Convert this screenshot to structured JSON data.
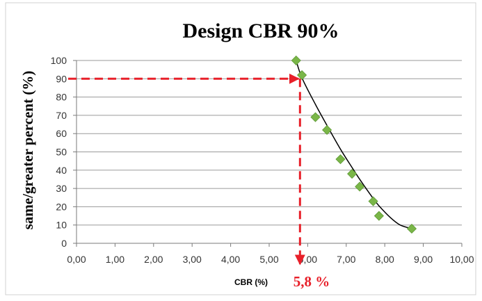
{
  "chart_data": {
    "type": "scatter",
    "title": "Design CBR 90%",
    "xlabel": "CBR (%)",
    "ylabel": "same/greater percent (%)",
    "xlim": [
      0,
      10
    ],
    "ylim": [
      0,
      100
    ],
    "x_ticks": [
      "0,00",
      "1,00",
      "2,00",
      "3,00",
      "4,00",
      "5,00",
      "6,00",
      "7,00",
      "8,00",
      "9,00",
      "10,00"
    ],
    "y_ticks": [
      "0",
      "10",
      "20",
      "30",
      "40",
      "50",
      "60",
      "70",
      "80",
      "90",
      "100"
    ],
    "grid": "horizontal",
    "series": [
      {
        "values": [
          {
            "x": 5.7,
            "y": 100
          },
          {
            "x": 5.85,
            "y": 92
          },
          {
            "x": 6.2,
            "y": 69
          },
          {
            "x": 6.5,
            "y": 62
          },
          {
            "x": 6.85,
            "y": 46
          },
          {
            "x": 7.15,
            "y": 38
          },
          {
            "x": 7.35,
            "y": 31
          },
          {
            "x": 7.7,
            "y": 23
          },
          {
            "x": 7.85,
            "y": 15
          },
          {
            "x": 8.7,
            "y": 8
          }
        ],
        "color": "#7ab648"
      }
    ],
    "trendline": {
      "x": [
        5.7,
        5.85,
        6.2,
        6.5,
        6.85,
        7.15,
        7.35,
        7.7,
        7.85,
        8.15,
        8.4,
        8.7
      ],
      "y": [
        100,
        90.5,
        76,
        64.5,
        51.5,
        41.5,
        35,
        24.5,
        20.5,
        14,
        10,
        8
      ],
      "color": "#000000"
    },
    "annotation": {
      "label": "5,8 %",
      "x": 5.8,
      "y": 90,
      "color": "#e8202a"
    },
    "marker_color": "#7ab648",
    "annotation_color": "#e8202a"
  }
}
